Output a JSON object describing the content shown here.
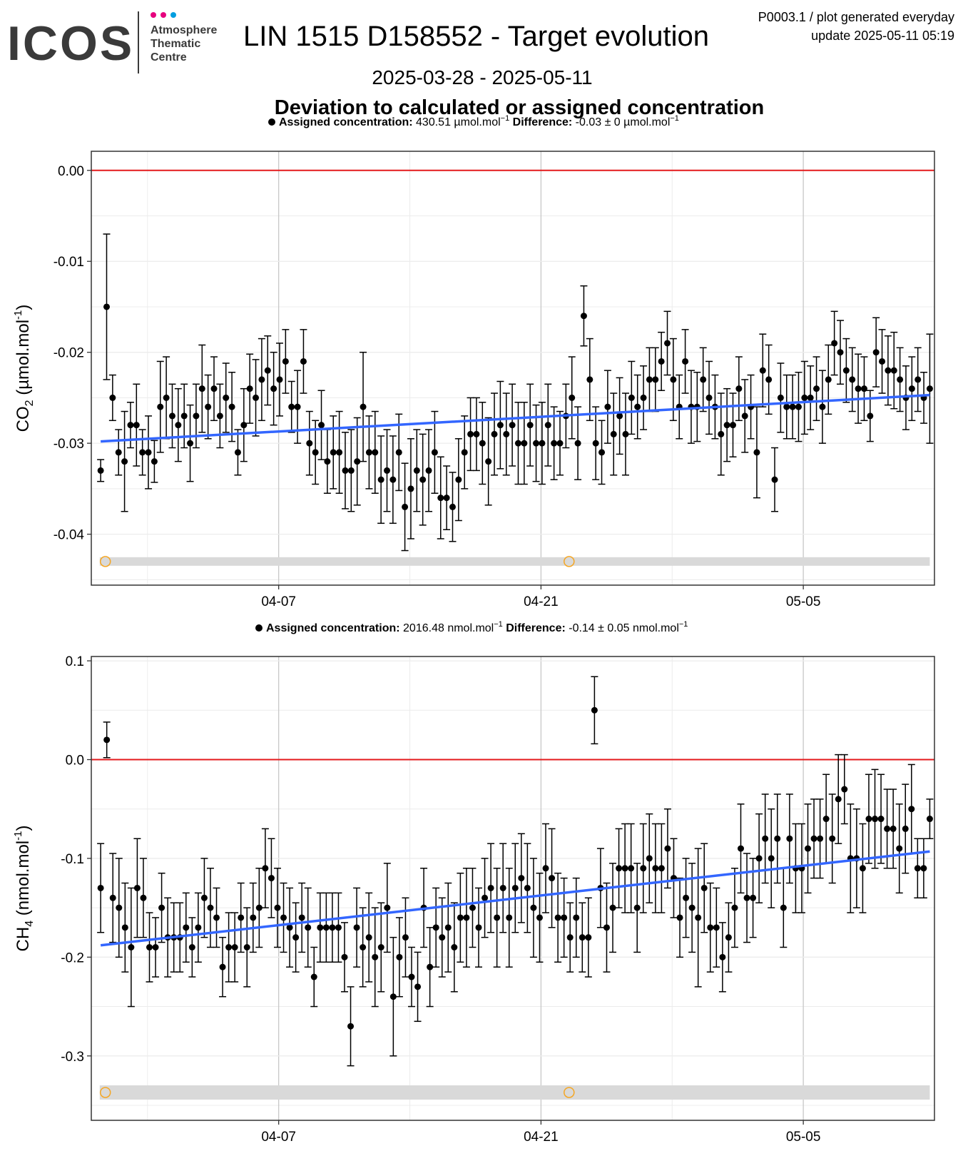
{
  "header": {
    "logo_text": "ICOS",
    "logo_subtitle": [
      "Atmosphere",
      "Thematic",
      "Centre"
    ],
    "logo_dot_colors": [
      "#e6007e",
      "#e6007e",
      "#009ee0"
    ],
    "title": "LIN 1515 D158552 - Target evolution",
    "date_range": "2025-03-28 - 2025-05-11",
    "section_title": "Deviation to calculated or assigned concentration",
    "corner_line1": "P0003.1 / plot generated everyday",
    "corner_line2": "update  2025-05-11 05:19"
  },
  "colors": {
    "zero_line": "#e41a1c",
    "trend_line": "#3366ff",
    "points": "#000000",
    "flag_band": "#d9d9d9",
    "flag_marker": "#f5a623",
    "grid_major": "#c8c8c8",
    "grid_minor": "#ececec"
  },
  "chart_data": [
    {
      "type": "scatter",
      "species": "CO2",
      "ylabel_main": "CO",
      "ylabel_sub": "2",
      "ylabel_unit": " (µmol.mol",
      "ylabel_sup": "-1",
      "ylabel_close": ")",
      "legend": {
        "assigned_label": "Assigned concentration:",
        "assigned_value": "430.51 µmol.mol",
        "assigned_sup": "−1",
        "diff_label": "Difference:",
        "diff_value": "-0.03 ± 0 µmol.mol",
        "diff_sup": "−1"
      },
      "xlim": [
        "2025-03-28",
        "2025-05-12"
      ],
      "x_ticks": [
        "04-07",
        "04-21",
        "05-05"
      ],
      "x_tick_dates": [
        "2025-04-07",
        "2025-04-21",
        "2025-05-05"
      ],
      "ylim": [
        -0.0456,
        0.0021
      ],
      "y_ticks": [
        0.0,
        -0.01,
        -0.02,
        -0.03,
        -0.04
      ],
      "y_tick_labels": [
        "0.00",
        "-0.01",
        "-0.02",
        "-0.03",
        "-0.04"
      ],
      "zero_line": 0,
      "trend": {
        "x": [
          "2025-03-28 12:00",
          "2025-05-11 18:00"
        ],
        "y": [
          -0.0298,
          -0.0247
        ]
      },
      "flags": {
        "band_y": -0.043,
        "markers_x": [
          "2025-03-28 18:00",
          "2025-04-22 12:00"
        ]
      },
      "y_start": -0.033,
      "y_step_days": 0.3333,
      "values": [
        -0.033,
        -0.015,
        -0.025,
        -0.031,
        -0.032,
        -0.028,
        -0.028,
        -0.031,
        -0.031,
        -0.032,
        -0.026,
        -0.025,
        -0.027,
        -0.028,
        -0.027,
        -0.03,
        -0.027,
        -0.024,
        -0.026,
        -0.024,
        -0.027,
        -0.025,
        -0.026,
        -0.031,
        -0.028,
        -0.024,
        -0.025,
        -0.023,
        -0.022,
        -0.024,
        -0.023,
        -0.021,
        -0.026,
        -0.026,
        -0.021,
        -0.03,
        -0.031,
        -0.028,
        -0.032,
        -0.031,
        -0.031,
        -0.033,
        -0.033,
        -0.032,
        -0.026,
        -0.031,
        -0.031,
        -0.034,
        -0.033,
        -0.034,
        -0.031,
        -0.037,
        -0.035,
        -0.033,
        -0.034,
        -0.033,
        -0.031,
        -0.036,
        -0.036,
        -0.037,
        -0.034,
        -0.031,
        -0.029,
        -0.029,
        -0.03,
        -0.032,
        -0.029,
        -0.028,
        -0.029,
        -0.028,
        -0.03,
        -0.03,
        -0.028,
        -0.03,
        -0.03,
        -0.028,
        -0.03,
        -0.03,
        -0.027,
        -0.025,
        -0.03,
        -0.016,
        -0.023,
        -0.03,
        -0.031,
        -0.026,
        -0.029,
        -0.027,
        -0.029,
        -0.025,
        -0.026,
        -0.025,
        -0.023,
        -0.023,
        -0.021,
        -0.019,
        -0.023,
        -0.026,
        -0.021,
        -0.026,
        -0.026,
        -0.023,
        -0.025,
        -0.026,
        -0.029,
        -0.028,
        -0.028,
        -0.024,
        -0.027,
        -0.026,
        -0.031,
        -0.022,
        -0.023,
        -0.034,
        -0.025,
        -0.026,
        -0.026,
        -0.026,
        -0.025,
        -0.025,
        -0.024,
        -0.026,
        -0.023,
        -0.019,
        -0.02,
        -0.022,
        -0.023,
        -0.024,
        -0.024,
        -0.027,
        -0.02,
        -0.021,
        -0.022,
        -0.022,
        -0.023,
        -0.025,
        -0.024,
        -0.023,
        -0.025,
        -0.024
      ],
      "errors": [
        0.0012,
        0.008,
        0.0025,
        0.0025,
        0.0055,
        0.0025,
        0.0045,
        0.0025,
        0.004,
        0.0023,
        0.005,
        0.0045,
        0.0035,
        0.004,
        0.0035,
        0.0042,
        0.0035,
        0.0048,
        0.0035,
        0.0035,
        0.0035,
        0.0038,
        0.0038,
        0.0025,
        0.004,
        0.0038,
        0.0042,
        0.0045,
        0.0038,
        0.004,
        0.004,
        0.0035,
        0.0028,
        0.004,
        0.0035,
        0.0035,
        0.0035,
        0.0038,
        0.0035,
        0.004,
        0.0045,
        0.0042,
        0.0045,
        0.0048,
        0.006,
        0.004,
        0.0045,
        0.0048,
        0.0045,
        0.0048,
        0.0042,
        0.0048,
        0.0055,
        0.0045,
        0.005,
        0.0045,
        0.0045,
        0.0045,
        0.0035,
        0.0038,
        0.0045,
        0.004,
        0.004,
        0.004,
        0.0045,
        0.0048,
        0.0045,
        0.0048,
        0.0045,
        0.0045,
        0.0045,
        0.0045,
        0.0045,
        0.0042,
        0.0045,
        0.0045,
        0.004,
        0.0035,
        0.0035,
        0.0045,
        0.004,
        0.0033,
        0.0045,
        0.004,
        0.0035,
        0.004,
        0.0045,
        0.0042,
        0.0045,
        0.004,
        0.0035,
        0.0035,
        0.0035,
        0.0035,
        0.0032,
        0.0035,
        0.0045,
        0.0035,
        0.0035,
        0.004,
        0.0038,
        0.0035,
        0.004,
        0.0035,
        0.0045,
        0.004,
        0.0035,
        0.0035,
        0.004,
        0.0035,
        0.005,
        0.004,
        0.0038,
        0.0035,
        0.0038,
        0.0035,
        0.0035,
        0.0038,
        0.004,
        0.0035,
        0.0035,
        0.004,
        0.0038,
        0.0035,
        0.0035,
        0.0035,
        0.0035,
        0.0038,
        0.0035,
        0.0028,
        0.0038,
        0.0035,
        0.0038,
        0.0042,
        0.0035,
        0.0035,
        0.0035,
        0.0035,
        0.0028,
        0.006
      ]
    },
    {
      "type": "scatter",
      "species": "CH4",
      "ylabel_main": "CH",
      "ylabel_sub": "4",
      "ylabel_unit": " (nmol.mol",
      "ylabel_sup": "-1",
      "ylabel_close": ")",
      "legend": {
        "assigned_label": "Assigned concentration:",
        "assigned_value": "2016.48 nmol.mol",
        "assigned_sup": "−1",
        "diff_label": "Difference:",
        "diff_value": "-0.14 ± 0.05 nmol.mol",
        "diff_sup": "−1"
      },
      "xlim": [
        "2025-03-28",
        "2025-05-12"
      ],
      "x_ticks": [
        "04-07",
        "04-21",
        "05-05"
      ],
      "x_tick_dates": [
        "2025-04-07",
        "2025-04-21",
        "2025-05-05"
      ],
      "ylim": [
        -0.3652,
        0.1044
      ],
      "y_ticks": [
        0.1,
        0.0,
        -0.1,
        -0.2,
        -0.3
      ],
      "y_tick_labels": [
        "0.1",
        "0.0",
        "-0.1",
        "-0.2",
        "-0.3"
      ],
      "zero_line": 0,
      "trend": {
        "x": [
          "2025-03-28 12:00",
          "2025-05-11 18:00"
        ],
        "y": [
          -0.188,
          -0.093
        ]
      },
      "flags": {
        "band_y": -0.337,
        "markers_x": [
          "2025-03-28 18:00",
          "2025-04-22 12:00"
        ]
      },
      "values": [
        -0.13,
        0.02,
        -0.14,
        -0.15,
        -0.17,
        -0.19,
        -0.13,
        -0.14,
        -0.19,
        -0.19,
        -0.15,
        -0.18,
        -0.18,
        -0.18,
        -0.17,
        -0.19,
        -0.17,
        -0.14,
        -0.15,
        -0.16,
        -0.21,
        -0.19,
        -0.19,
        -0.16,
        -0.19,
        -0.16,
        -0.15,
        -0.11,
        -0.12,
        -0.15,
        -0.16,
        -0.17,
        -0.18,
        -0.16,
        -0.17,
        -0.22,
        -0.17,
        -0.17,
        -0.17,
        -0.17,
        -0.2,
        -0.27,
        -0.17,
        -0.19,
        -0.18,
        -0.2,
        -0.19,
        -0.15,
        -0.24,
        -0.2,
        -0.18,
        -0.22,
        -0.23,
        -0.15,
        -0.21,
        -0.17,
        -0.18,
        -0.17,
        -0.19,
        -0.16,
        -0.16,
        -0.15,
        -0.17,
        -0.14,
        -0.13,
        -0.16,
        -0.13,
        -0.16,
        -0.13,
        -0.12,
        -0.13,
        -0.15,
        -0.16,
        -0.11,
        -0.12,
        -0.16,
        -0.16,
        -0.18,
        -0.16,
        -0.18,
        -0.18,
        0.05,
        -0.13,
        -0.17,
        -0.15,
        -0.11,
        -0.11,
        -0.11,
        -0.15,
        -0.11,
        -0.1,
        -0.11,
        -0.11,
        -0.09,
        -0.12,
        -0.16,
        -0.14,
        -0.15,
        -0.16,
        -0.13,
        -0.17,
        -0.17,
        -0.2,
        -0.18,
        -0.15,
        -0.09,
        -0.14,
        -0.14,
        -0.1,
        -0.08,
        -0.1,
        -0.08,
        -0.15,
        -0.08,
        -0.11,
        -0.11,
        -0.09,
        -0.08,
        -0.08,
        -0.06,
        -0.08,
        -0.04,
        -0.03,
        -0.1,
        -0.1,
        -0.11,
        -0.06,
        -0.06,
        -0.06,
        -0.07,
        -0.07,
        -0.09,
        -0.07,
        -0.05,
        -0.11,
        -0.11,
        -0.06
      ],
      "errors": [
        0.045,
        0.018,
        0.045,
        0.05,
        0.045,
        0.06,
        0.05,
        0.04,
        0.035,
        0.03,
        0.035,
        0.04,
        0.035,
        0.035,
        0.035,
        0.03,
        0.035,
        0.04,
        0.04,
        0.03,
        0.03,
        0.035,
        0.035,
        0.035,
        0.04,
        0.035,
        0.04,
        0.04,
        0.04,
        0.04,
        0.035,
        0.04,
        0.035,
        0.035,
        0.04,
        0.03,
        0.035,
        0.035,
        0.035,
        0.035,
        0.035,
        0.04,
        0.04,
        0.04,
        0.045,
        0.05,
        0.045,
        0.045,
        0.06,
        0.04,
        0.04,
        0.03,
        0.035,
        0.04,
        0.04,
        0.04,
        0.04,
        0.045,
        0.045,
        0.045,
        0.05,
        0.04,
        0.04,
        0.04,
        0.045,
        0.05,
        0.045,
        0.05,
        0.045,
        0.045,
        0.045,
        0.05,
        0.045,
        0.045,
        0.05,
        0.045,
        0.04,
        0.035,
        0.04,
        0.035,
        0.04,
        0.034,
        0.04,
        0.045,
        0.045,
        0.04,
        0.045,
        0.045,
        0.045,
        0.045,
        0.045,
        0.045,
        0.045,
        0.04,
        0.04,
        0.04,
        0.04,
        0.045,
        0.07,
        0.045,
        0.045,
        0.04,
        0.035,
        0.035,
        0.04,
        0.045,
        0.045,
        0.04,
        0.045,
        0.045,
        0.05,
        0.045,
        0.04,
        0.045,
        0.045,
        0.045,
        0.045,
        0.04,
        0.04,
        0.045,
        0.045,
        0.045,
        0.035,
        0.055,
        0.05,
        0.045,
        0.045,
        0.05,
        0.045,
        0.04,
        0.04,
        0.045,
        0.045,
        0.045,
        0.03,
        0.03,
        0.02
      ]
    }
  ]
}
